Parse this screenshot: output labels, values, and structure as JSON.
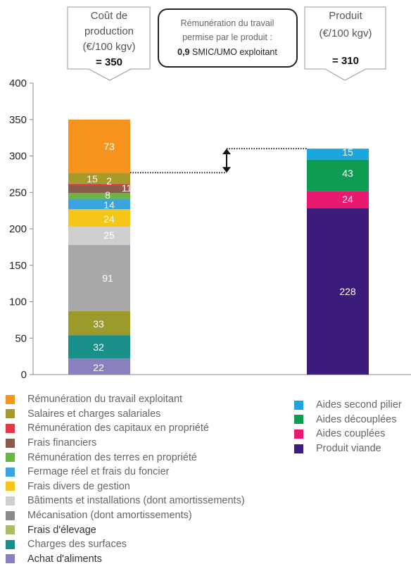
{
  "chart_data": {
    "type": "bar",
    "stacked": true,
    "categories": [
      "Coût de production",
      "Produit"
    ],
    "ylim": [
      0,
      400
    ],
    "yticks": [
      "0",
      "50",
      "100",
      "150",
      "200",
      "250",
      "300",
      "350",
      "400"
    ],
    "grid": false,
    "stacks": [
      {
        "segments": [
          {
            "name": "Achat d'aliments",
            "value": 22,
            "label": "22",
            "color": "#8b7fbf"
          },
          {
            "name": "Charges des surfaces",
            "value": 32,
            "label": "32",
            "color": "#1a8f8a"
          },
          {
            "name": "Frais d'élevage",
            "value": 33,
            "label": "33",
            "color": "#9c9a2a"
          },
          {
            "name": "Mécanisation (dont amortissements)",
            "value": 91,
            "label": "91",
            "color": "#a9a9a9"
          },
          {
            "name": "Bâtiments et installations (dont amortissements)",
            "value": 25,
            "label": "25",
            "color": "#cfcfcf"
          },
          {
            "name": "Frais divers de gestion",
            "value": 24,
            "label": "24",
            "color": "#f5c518"
          },
          {
            "name": "Fermage réel et frais du foncier",
            "value": 14,
            "label": "14",
            "color": "#3aa3e0"
          },
          {
            "name": "Rémunération des terres en propriété",
            "value": 8,
            "label": "8",
            "color": "#6cb444"
          },
          {
            "name": "Frais financiers",
            "value": 11,
            "label": "11",
            "color": "#8c5a4a"
          },
          {
            "name": "Rémunération des capitaux en propriété",
            "value": 2,
            "label": "2",
            "color": "#e03a4a"
          },
          {
            "name": "Salaires et charges salariales",
            "value": 15,
            "label": "15",
            "color": "#a89a2a"
          },
          {
            "name": "Rémunération du travail exploitant",
            "value": 73,
            "label": "73",
            "color": "#f7941d"
          }
        ]
      },
      {
        "segments": [
          {
            "name": "Produit viande",
            "value": 228,
            "label": "228",
            "color": "#3b1c7a"
          },
          {
            "name": "Aides couplées",
            "value": 24,
            "label": "24",
            "color": "#e8196e"
          },
          {
            "name": "Aides découplées",
            "value": 43,
            "label": "43",
            "color": "#0e9b52"
          },
          {
            "name": "Aides second pilier",
            "value": 15,
            "label": "15",
            "color": "#1ba6e0"
          }
        ]
      }
    ],
    "callouts": {
      "cost": {
        "line1": "Coût de",
        "line2": "production",
        "line3": "(€/100 kgv)",
        "total": "= 350"
      },
      "center": {
        "line1": "Rémunération du travail",
        "line2": "permise par le produit :",
        "value": "0,9",
        "line3": " SMIC/UMO exploitant"
      },
      "produit": {
        "line1": "Produit",
        "line2": "(€/100 kgv)",
        "total": "= 310"
      }
    },
    "legend_left": [
      {
        "label": "Rémunération du travail exploitant",
        "color": "#f7941d"
      },
      {
        "label": "Salaires et charges salariales",
        "color": "#a89a2a"
      },
      {
        "label": "Rémunération des capitaux en propriété",
        "color": "#e03a4a"
      },
      {
        "label": "Frais financiers",
        "color": "#8c5a4a"
      },
      {
        "label": "Rémunération des terres en propriété",
        "color": "#6cb444"
      },
      {
        "label": "Fermage réel et frais du foncier",
        "color": "#3aa3e0"
      },
      {
        "label": "Frais divers de gestion",
        "color": "#f5c518"
      },
      {
        "label": "Bâtiments et installations (dont amortissements)",
        "color": "#cfcfcf"
      },
      {
        "label": "Mécanisation (dont amortissements)",
        "color": "#8a8a8a"
      },
      {
        "label": "Frais d'élevage",
        "color": "#a8bf6a"
      },
      {
        "label": "Charges des surfaces",
        "color": "#1a8f8a"
      },
      {
        "label": "Achat d'aliments",
        "color": "#8b7fbf"
      }
    ],
    "legend_right": [
      {
        "label": "Aides second pilier",
        "color": "#1ba6e0"
      },
      {
        "label": "Aides découplées",
        "color": "#0e9b52"
      },
      {
        "label": "Aides couplées",
        "color": "#e8196e"
      },
      {
        "label": "Produit viande",
        "color": "#3b1c7a"
      }
    ]
  }
}
